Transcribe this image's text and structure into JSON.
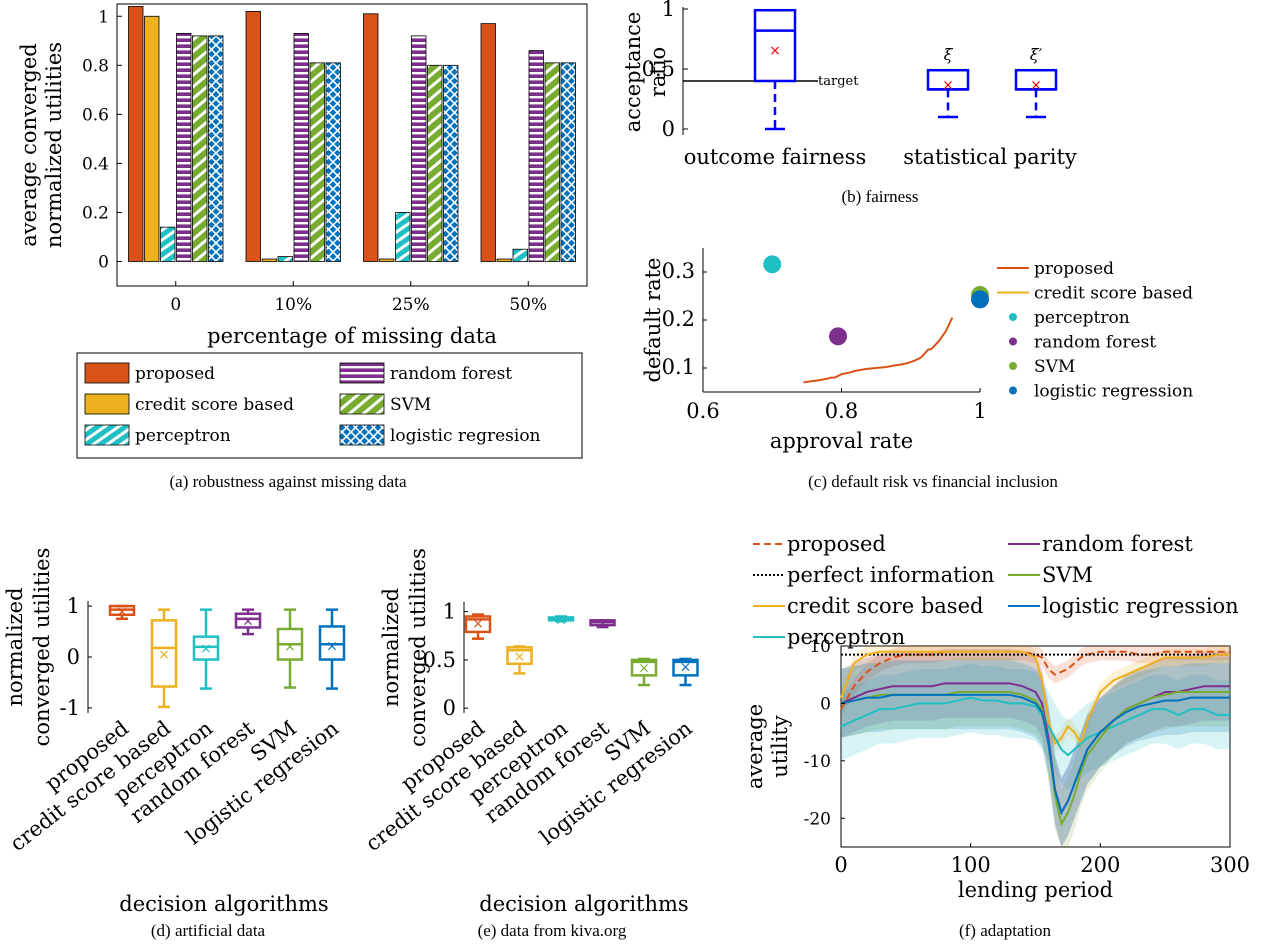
{
  "colors": {
    "proposed": "#d95319",
    "credit": "#edb120",
    "perceptron": "#1fbfc4",
    "random_forest": "#7e2f8e",
    "svm": "#77ac30",
    "logistic": "#0072bd",
    "box_blue": "#0000ff",
    "mean_marker": "#ff0000"
  },
  "captions": {
    "a": "(a) robustness against missing data",
    "b": "(b) fairness",
    "c": "(c) default risk vs financial inclusion",
    "d": "(d) artificial data",
    "e": "(e) data from kiva.org",
    "f": "(f) adaptation"
  },
  "chart_data": [
    {
      "id": "a",
      "type": "bar",
      "xlabel": "percentage of missing data",
      "ylabel_lines": [
        "average converged",
        "normalized utilities"
      ],
      "ylim": [
        -0.1,
        1.05
      ],
      "yticks": [
        0,
        0.2,
        0.4,
        0.6,
        0.8,
        1
      ],
      "ytick_labels": [
        "0",
        "0.2",
        "0.4",
        "0.6",
        "0.8",
        "1"
      ],
      "categories": [
        "0",
        "10%",
        "25%",
        "50%"
      ],
      "series": [
        {
          "name": "proposed",
          "color_key": "proposed",
          "pattern": "solid",
          "values": [
            1.04,
            1.02,
            1.01,
            0.97
          ]
        },
        {
          "name": "credit score based",
          "color_key": "credit",
          "pattern": "solid",
          "values": [
            1.0,
            0.01,
            0.01,
            0.01
          ]
        },
        {
          "name": "perceptron",
          "color_key": "perceptron",
          "pattern": "diag",
          "values": [
            0.14,
            0.02,
            0.2,
            0.05
          ]
        },
        {
          "name": "random forest",
          "color_key": "random_forest",
          "pattern": "horiz",
          "values": [
            0.93,
            0.93,
            0.92,
            0.86
          ]
        },
        {
          "name": "SVM",
          "color_key": "svm",
          "pattern": "diag",
          "values": [
            0.92,
            0.81,
            0.8,
            0.81
          ]
        },
        {
          "name": "logistic regresion",
          "color_key": "logistic",
          "pattern": "cross",
          "values": [
            0.92,
            0.81,
            0.8,
            0.81
          ]
        }
      ],
      "legend_placement": "below"
    },
    {
      "id": "b",
      "type": "box",
      "ylabel_lines": [
        "acceptance",
        "ratio"
      ],
      "ylim": [
        -0.05,
        1.0
      ],
      "yticks": [
        0,
        0.5,
        1
      ],
      "ytick_labels": [
        "0",
        "0.5",
        "1"
      ],
      "categories": [
        "outcome fairness",
        "statistical parity"
      ],
      "target_label": "target",
      "target_value": 0.4,
      "boxes": [
        {
          "label": "",
          "q1": 0.4,
          "median": 0.82,
          "q3": 0.99,
          "whisker_low": 0.0,
          "whisker_high": 0.99,
          "mean": 0.66
        },
        {
          "label": "ξ",
          "q1": 0.33,
          "median": 0.33,
          "q3": 0.49,
          "whisker_low": 0.1,
          "whisker_high": 0.49,
          "mean": 0.37
        },
        {
          "label": "ξ′",
          "q1": 0.33,
          "median": 0.33,
          "q3": 0.49,
          "whisker_low": 0.1,
          "whisker_high": 0.49,
          "mean": 0.37
        }
      ]
    },
    {
      "id": "c",
      "type": "scatter",
      "xlabel": "approval rate",
      "ylabel": "default rate",
      "xlim": [
        0.6,
        1.0
      ],
      "ylim": [
        0.05,
        0.35
      ],
      "xticks": [
        0.6,
        0.8,
        1
      ],
      "xtick_labels": [
        "0.6",
        "0.8",
        "1"
      ],
      "yticks": [
        0.1,
        0.2,
        0.3
      ],
      "ytick_labels": [
        "0.1",
        "0.2",
        "0.3"
      ],
      "series": [
        {
          "name": "proposed",
          "color_key": "proposed",
          "kind": "line",
          "x": [
            0.745,
            0.75,
            0.77,
            0.78,
            0.785,
            0.79,
            0.8,
            0.81,
            0.82,
            0.835,
            0.85,
            0.865,
            0.875,
            0.885,
            0.895,
            0.905,
            0.915,
            0.92,
            0.925,
            0.93,
            0.94,
            0.95,
            0.96
          ],
          "y": [
            0.07,
            0.071,
            0.075,
            0.078,
            0.08,
            0.08,
            0.087,
            0.09,
            0.094,
            0.098,
            0.1,
            0.102,
            0.105,
            0.107,
            0.11,
            0.115,
            0.122,
            0.13,
            0.138,
            0.14,
            0.155,
            0.175,
            0.205
          ]
        },
        {
          "name": "credit score based",
          "color_key": "credit",
          "kind": "line",
          "x": [],
          "y": []
        },
        {
          "name": "perceptron",
          "color_key": "perceptron",
          "kind": "point",
          "x": [
            0.7
          ],
          "y": [
            0.316
          ]
        },
        {
          "name": "random forest",
          "color_key": "random_forest",
          "kind": "point",
          "x": [
            0.795
          ],
          "y": [
            0.166
          ]
        },
        {
          "name": "SVM",
          "color_key": "svm",
          "kind": "point",
          "x": [
            1.0
          ],
          "y": [
            0.252
          ]
        },
        {
          "name": "logistic regression",
          "color_key": "logistic",
          "kind": "point",
          "x": [
            1.0
          ],
          "y": [
            0.243
          ]
        }
      ],
      "legend_placement": "right"
    },
    {
      "id": "d",
      "type": "box",
      "xlabel": "decision algorithms",
      "ylabel_lines": [
        "normalized",
        "converged utilities"
      ],
      "ylim": [
        -1.1,
        1.1
      ],
      "yticks": [
        -1,
        0,
        1
      ],
      "ytick_labels": [
        "-1",
        "0",
        "1"
      ],
      "categories": [
        "proposed",
        "credit score based",
        "perceptron",
        "random forest",
        "SVM",
        "logistic regresion"
      ],
      "boxes": [
        {
          "color_key": "proposed",
          "q1": 0.83,
          "median": 0.93,
          "q3": 1.0,
          "whisker_low": 0.75,
          "whisker_high": 1.0,
          "mean": 0.9
        },
        {
          "color_key": "credit",
          "q1": -0.58,
          "median": 0.18,
          "q3": 0.72,
          "whisker_low": -0.98,
          "whisker_high": 0.93,
          "mean": 0.06
        },
        {
          "color_key": "perceptron",
          "q1": -0.05,
          "median": 0.2,
          "q3": 0.4,
          "whisker_low": -0.62,
          "whisker_high": 0.93,
          "mean": 0.18
        },
        {
          "color_key": "random_forest",
          "q1": 0.58,
          "median": 0.75,
          "q3": 0.85,
          "whisker_low": 0.45,
          "whisker_high": 0.93,
          "mean": 0.72
        },
        {
          "color_key": "svm",
          "q1": -0.05,
          "median": 0.25,
          "q3": 0.55,
          "whisker_low": -0.6,
          "whisker_high": 0.93,
          "mean": 0.22
        },
        {
          "color_key": "logistic",
          "q1": -0.05,
          "median": 0.25,
          "q3": 0.6,
          "whisker_low": -0.62,
          "whisker_high": 0.93,
          "mean": 0.23
        }
      ]
    },
    {
      "id": "e",
      "type": "box",
      "xlabel": "decision algorithms",
      "ylabel_lines": [
        "normalized",
        "converged utilities"
      ],
      "ylim": [
        -0.05,
        1.1
      ],
      "yticks": [
        0,
        0.5,
        1
      ],
      "ytick_labels": [
        "0",
        "0.5",
        "1"
      ],
      "categories": [
        "proposed",
        "credit score based",
        "perceptron",
        "random forest",
        "SVM",
        "logistic regresion"
      ],
      "boxes": [
        {
          "color_key": "proposed",
          "q1": 0.79,
          "median": 0.92,
          "q3": 0.95,
          "whisker_low": 0.72,
          "whisker_high": 0.97,
          "mean": 0.88
        },
        {
          "color_key": "credit",
          "q1": 0.46,
          "median": 0.6,
          "q3": 0.63,
          "whisker_low": 0.36,
          "whisker_high": 0.64,
          "mean": 0.54
        },
        {
          "color_key": "perceptron",
          "q1": 0.91,
          "median": 0.93,
          "q3": 0.94,
          "whisker_low": 0.9,
          "whisker_high": 0.95,
          "mean": 0.92
        },
        {
          "color_key": "random_forest",
          "q1": 0.86,
          "median": 0.89,
          "q3": 0.91,
          "whisker_low": 0.84,
          "whisker_high": 0.91,
          "mean": 0.88
        },
        {
          "color_key": "svm",
          "q1": 0.34,
          "median": 0.48,
          "q3": 0.5,
          "whisker_low": 0.24,
          "whisker_high": 0.51,
          "mean": 0.42
        },
        {
          "color_key": "logistic",
          "q1": 0.34,
          "median": 0.48,
          "q3": 0.5,
          "whisker_low": 0.24,
          "whisker_high": 0.51,
          "mean": 0.43
        }
      ]
    },
    {
      "id": "f",
      "type": "line",
      "xlabel": "lending period",
      "ylabel_lines": [
        "average",
        "utility"
      ],
      "xlim": [
        0,
        300
      ],
      "ylim": [
        -25,
        10
      ],
      "xticks": [
        0,
        100,
        200,
        300
      ],
      "xtick_labels": [
        "0",
        "100",
        "200",
        "300"
      ],
      "yticks": [
        10,
        0,
        -10,
        -20
      ],
      "ytick_labels": [
        "10",
        "0",
        "-10",
        "-20"
      ],
      "x": [
        0,
        10,
        20,
        30,
        40,
        50,
        60,
        70,
        80,
        90,
        100,
        110,
        120,
        130,
        140,
        150,
        155,
        160,
        165,
        170,
        175,
        180,
        185,
        190,
        200,
        210,
        220,
        230,
        240,
        250,
        260,
        270,
        280,
        290,
        300
      ],
      "series": [
        {
          "name": "proposed",
          "color_key": "proposed",
          "style": "dashed",
          "band": 1.5,
          "y": [
            -1,
            3,
            5.5,
            7,
            8,
            8.5,
            8.5,
            8.5,
            9,
            9,
            9,
            9,
            9,
            9,
            9,
            8.5,
            8,
            6,
            5,
            5.5,
            6,
            7,
            8,
            8.5,
            9,
            9,
            9,
            8.5,
            8.5,
            9,
            9,
            9,
            9,
            9,
            9
          ]
        },
        {
          "name": "perfect information",
          "color_key": "black",
          "style": "dotted",
          "band": 0,
          "y": [
            8.5,
            8.5,
            8.5,
            8.5,
            8.5,
            8.5,
            8.5,
            8.5,
            8.5,
            8.5,
            8.5,
            8.5,
            8.5,
            8.5,
            8.5,
            8.5,
            8.5,
            8.5,
            8.5,
            8.5,
            8.5,
            8.5,
            8.5,
            8.5,
            8.5,
            8.5,
            8.5,
            8.5,
            8.5,
            8.5,
            8.5,
            8.5,
            8.5,
            8.5,
            8.5
          ]
        },
        {
          "name": "credit score based",
          "color_key": "credit",
          "style": "solid",
          "band": 1.5,
          "y": [
            1,
            7,
            8.5,
            9,
            9,
            9,
            9,
            9,
            9,
            9,
            9,
            9,
            9,
            9,
            9,
            8,
            4,
            -3,
            -7,
            -6,
            -4,
            -5,
            -7,
            -3,
            2,
            4,
            5,
            6,
            7,
            8,
            8,
            8,
            8,
            8.5,
            8.5
          ]
        },
        {
          "name": "perceptron",
          "color_key": "perceptron",
          "style": "solid",
          "band": 6,
          "y": [
            -4,
            -3,
            -2,
            -1,
            -1,
            -0.5,
            0,
            0,
            0,
            0.5,
            1,
            0.5,
            0.5,
            0,
            0,
            -0.5,
            -2,
            -4,
            -6,
            -8,
            -9,
            -8,
            -7,
            -6,
            -5,
            -4,
            -3,
            -2,
            -1,
            -1,
            -2,
            -1,
            -1,
            -2,
            -2
          ]
        },
        {
          "name": "random forest",
          "color_key": "random_forest",
          "style": "solid",
          "band": 6,
          "y": [
            0,
            1,
            2,
            2.5,
            3,
            3,
            3,
            3,
            3.5,
            3.5,
            3.5,
            3.5,
            3.5,
            3.5,
            3,
            2,
            0,
            -6,
            -15,
            -19,
            -17,
            -14,
            -11,
            -8,
            -5,
            -3,
            -1,
            0,
            1,
            2,
            2,
            2.5,
            3,
            3,
            3
          ]
        },
        {
          "name": "SVM",
          "color_key": "svm",
          "style": "solid",
          "band": 6,
          "y": [
            0,
            0.5,
            1,
            1.5,
            1.5,
            1.5,
            1.5,
            1.5,
            1.5,
            2,
            2,
            2,
            2,
            2,
            1.5,
            0.5,
            -1,
            -7,
            -16,
            -21,
            -19,
            -16,
            -12,
            -9,
            -6,
            -3,
            -1,
            0,
            1,
            1.5,
            2,
            2,
            2,
            2,
            2
          ]
        },
        {
          "name": "logistic regression",
          "color_key": "logistic",
          "style": "solid",
          "band": 6,
          "y": [
            0,
            0.5,
            1,
            1,
            1.5,
            1.5,
            1.5,
            1.5,
            1.5,
            1.5,
            1.5,
            1.5,
            1.5,
            1.5,
            1,
            0,
            -1.5,
            -7,
            -15,
            -19,
            -17,
            -14,
            -11,
            -8,
            -5,
            -3,
            -1.5,
            -0.5,
            0,
            0.5,
            0.5,
            1,
            1,
            1,
            1
          ]
        }
      ],
      "legend_placement": "top"
    }
  ]
}
